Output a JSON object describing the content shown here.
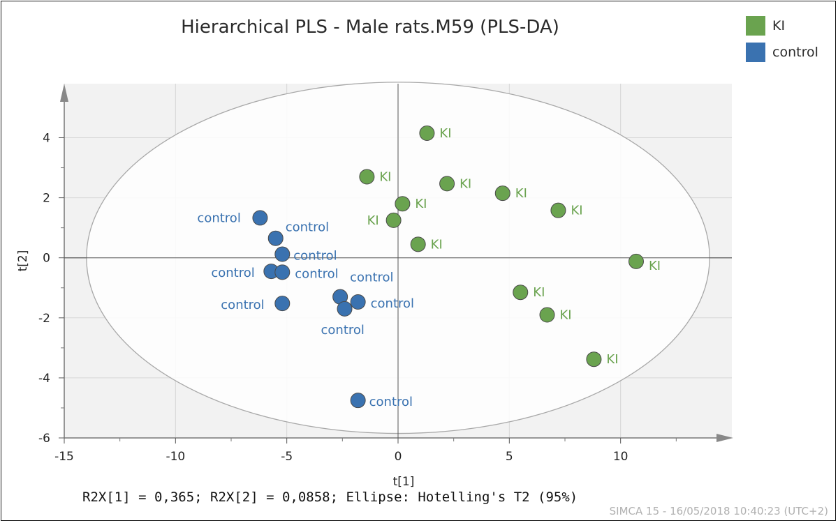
{
  "chart_data": {
    "type": "scatter",
    "title": "Hierarchical PLS - Male rats.M59 (PLS-DA)",
    "xlabel": "t[1]",
    "ylabel": "t[2]",
    "xlim": [
      -15,
      15
    ],
    "ylim": [
      -6,
      5.8
    ],
    "xticks": [
      -15,
      -10,
      -5,
      0,
      5,
      10
    ],
    "yticks": [
      -6,
      -4,
      -2,
      0,
      2,
      4
    ],
    "grid": true,
    "ellipse": {
      "label": "Hotelling's T2 (95%)",
      "center": [
        0,
        0
      ],
      "rx": 14,
      "ry": 5.85
    },
    "series": [
      {
        "name": "KI",
        "color": "#6aa34f",
        "points": [
          {
            "x": 1.3,
            "y": 4.15,
            "label": "KI"
          },
          {
            "x": -1.4,
            "y": 2.7,
            "label": "KI"
          },
          {
            "x": 2.2,
            "y": 2.47,
            "label": "KI"
          },
          {
            "x": 4.7,
            "y": 2.15,
            "label": "KI"
          },
          {
            "x": 0.2,
            "y": 1.8,
            "label": "KI"
          },
          {
            "x": 7.2,
            "y": 1.58,
            "label": "KI"
          },
          {
            "x": -0.2,
            "y": 1.25,
            "label": "KI"
          },
          {
            "x": 0.9,
            "y": 0.45,
            "label": "KI"
          },
          {
            "x": 10.7,
            "y": -0.12,
            "label": "KI"
          },
          {
            "x": 5.5,
            "y": -1.15,
            "label": "KI"
          },
          {
            "x": 6.7,
            "y": -1.9,
            "label": "KI"
          },
          {
            "x": 8.8,
            "y": -3.38,
            "label": "KI"
          }
        ]
      },
      {
        "name": "control",
        "color": "#3a72b0",
        "points": [
          {
            "x": -6.2,
            "y": 1.33,
            "label": "control"
          },
          {
            "x": -5.5,
            "y": 0.65,
            "label": "control"
          },
          {
            "x": -5.2,
            "y": 0.12,
            "label": "control"
          },
          {
            "x": -5.7,
            "y": -0.45,
            "label": "control"
          },
          {
            "x": -5.2,
            "y": -0.48,
            "label": "control"
          },
          {
            "x": -2.6,
            "y": -1.3,
            "label": "control"
          },
          {
            "x": -1.8,
            "y": -1.47,
            "label": "control"
          },
          {
            "x": -5.2,
            "y": -1.52,
            "label": "control"
          },
          {
            "x": -2.4,
            "y": -1.7,
            "label": "control"
          },
          {
            "x": -1.8,
            "y": -4.75,
            "label": "control"
          }
        ]
      }
    ],
    "footer": "R2X[1] = 0,365; R2X[2] = 0,0858; Ellipse: Hotelling's T2 (95%)",
    "stamp": "SIMCA 15 - 16/05/2018 10:40:23 (UTC+2)"
  }
}
